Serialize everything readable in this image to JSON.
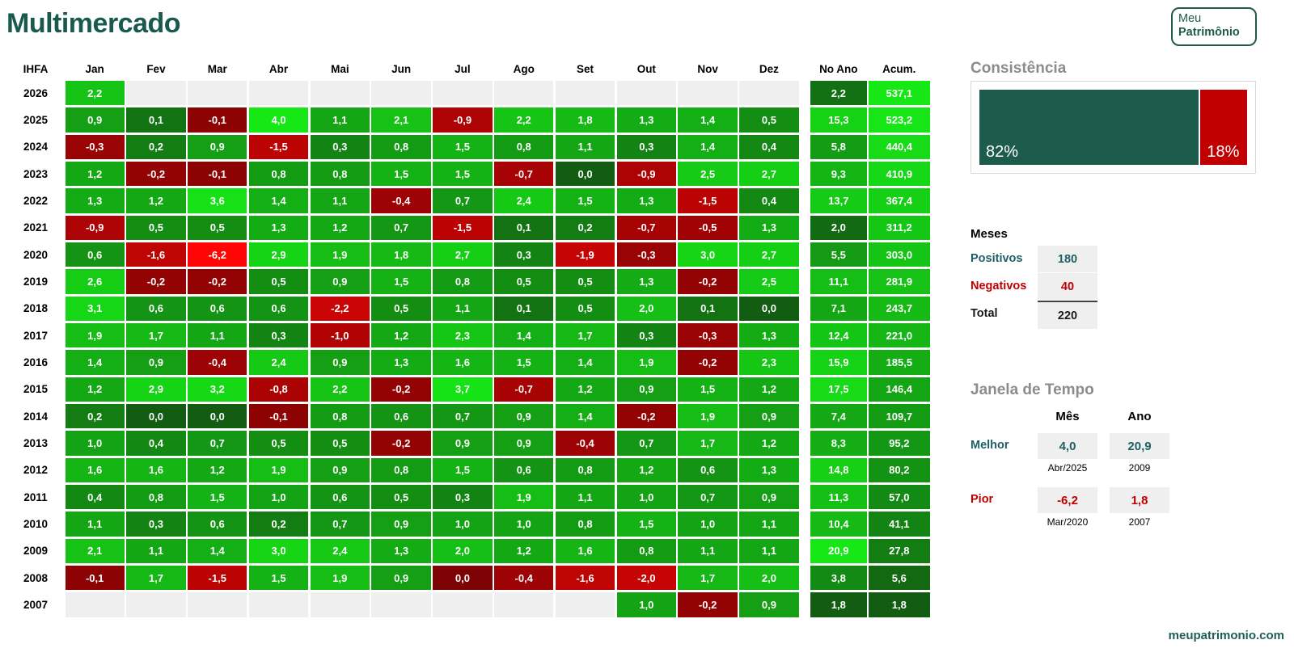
{
  "page": {
    "title": "Multimercado",
    "footer": "meupatrimonio.com"
  },
  "logo": {
    "line1": "Meu",
    "line2": "Patrimônio"
  },
  "chart_data": {
    "type": "heatmap",
    "title": "Multimercado",
    "corner_label": "IHFA",
    "month_columns": [
      "Jan",
      "Fev",
      "Mar",
      "Abr",
      "Mai",
      "Jun",
      "Jul",
      "Ago",
      "Set",
      "Out",
      "Nov",
      "Dez"
    ],
    "summary_columns": [
      "No Ano",
      "Acum."
    ],
    "rows": [
      {
        "year": "2026",
        "months": [
          "2,2",
          "",
          "",
          "",
          "",
          "",
          "",
          "",
          "",
          "",
          "",
          ""
        ],
        "no_ano": "2,2",
        "acum": "537,1"
      },
      {
        "year": "2025",
        "months": [
          "0,9",
          "0,1",
          "-0,1",
          "4,0",
          "1,1",
          "2,1",
          "-0,9",
          "2,2",
          "1,8",
          "1,3",
          "1,4",
          "0,5"
        ],
        "no_ano": "15,3",
        "acum": "523,2"
      },
      {
        "year": "2024",
        "months": [
          "-0,3",
          "0,2",
          "0,9",
          "-1,5",
          "0,3",
          "0,8",
          "1,5",
          "0,8",
          "1,1",
          "0,3",
          "1,4",
          "0,4"
        ],
        "no_ano": "5,8",
        "acum": "440,4"
      },
      {
        "year": "2023",
        "months": [
          "1,2",
          "-0,2",
          "-0,1",
          "0,8",
          "0,8",
          "1,5",
          "1,5",
          "-0,7",
          "0,0",
          "-0,9",
          "2,5",
          "2,7"
        ],
        "no_ano": "9,3",
        "acum": "410,9"
      },
      {
        "year": "2022",
        "months": [
          "1,3",
          "1,2",
          "3,6",
          "1,4",
          "1,1",
          "-0,4",
          "0,7",
          "2,4",
          "1,5",
          "1,3",
          "-1,5",
          "0,4"
        ],
        "no_ano": "13,7",
        "acum": "367,4"
      },
      {
        "year": "2021",
        "months": [
          "-0,9",
          "0,5",
          "0,5",
          "1,3",
          "1,2",
          "0,7",
          "-1,5",
          "0,1",
          "0,2",
          "-0,7",
          "-0,5",
          "1,3"
        ],
        "no_ano": "2,0",
        "acum": "311,2"
      },
      {
        "year": "2020",
        "months": [
          "0,6",
          "-1,6",
          "-6,2",
          "2,9",
          "1,9",
          "1,8",
          "2,7",
          "0,3",
          "-1,9",
          "-0,3",
          "3,0",
          "2,7"
        ],
        "no_ano": "5,5",
        "acum": "303,0"
      },
      {
        "year": "2019",
        "months": [
          "2,6",
          "-0,2",
          "-0,2",
          "0,5",
          "0,9",
          "1,5",
          "0,8",
          "0,5",
          "0,5",
          "1,3",
          "-0,2",
          "2,5"
        ],
        "no_ano": "11,1",
        "acum": "281,9"
      },
      {
        "year": "2018",
        "months": [
          "3,1",
          "0,6",
          "0,6",
          "0,6",
          "-2,2",
          "0,5",
          "1,1",
          "0,1",
          "0,5",
          "2,0",
          "0,1",
          "0,0"
        ],
        "no_ano": "7,1",
        "acum": "243,7"
      },
      {
        "year": "2017",
        "months": [
          "1,9",
          "1,7",
          "1,1",
          "0,3",
          "-1,0",
          "1,2",
          "2,3",
          "1,4",
          "1,7",
          "0,3",
          "-0,3",
          "1,3"
        ],
        "no_ano": "12,4",
        "acum": "221,0"
      },
      {
        "year": "2016",
        "months": [
          "1,4",
          "0,9",
          "-0,4",
          "2,4",
          "0,9",
          "1,3",
          "1,6",
          "1,5",
          "1,4",
          "1,9",
          "-0,2",
          "2,3"
        ],
        "no_ano": "15,9",
        "acum": "185,5"
      },
      {
        "year": "2015",
        "months": [
          "1,2",
          "2,9",
          "3,2",
          "-0,8",
          "2,2",
          "-0,2",
          "3,7",
          "-0,7",
          "1,2",
          "0,9",
          "1,5",
          "1,2"
        ],
        "no_ano": "17,5",
        "acum": "146,4"
      },
      {
        "year": "2014",
        "months": [
          "0,2",
          "0,0",
          "0,0",
          "-0,1",
          "0,8",
          "0,6",
          "0,7",
          "0,9",
          "1,4",
          "-0,2",
          "1,9",
          "0,9"
        ],
        "no_ano": "7,4",
        "acum": "109,7"
      },
      {
        "year": "2013",
        "months": [
          "1,0",
          "0,4",
          "0,7",
          "0,5",
          "0,5",
          "-0,2",
          "0,9",
          "0,9",
          "-0,4",
          "0,7",
          "1,7",
          "1,2"
        ],
        "no_ano": "8,3",
        "acum": "95,2"
      },
      {
        "year": "2012",
        "months": [
          "1,6",
          "1,6",
          "1,2",
          "1,9",
          "0,9",
          "0,8",
          "1,5",
          "0,6",
          "0,8",
          "1,2",
          "0,6",
          "1,3"
        ],
        "no_ano": "14,8",
        "acum": "80,2"
      },
      {
        "year": "2011",
        "months": [
          "0,4",
          "0,8",
          "1,5",
          "1,0",
          "0,6",
          "0,5",
          "0,3",
          "1,9",
          "1,1",
          "1,0",
          "0,7",
          "0,9"
        ],
        "no_ano": "11,3",
        "acum": "57,0"
      },
      {
        "year": "2010",
        "months": [
          "1,1",
          "0,3",
          "0,6",
          "0,2",
          "0,7",
          "0,9",
          "1,0",
          "1,0",
          "0,8",
          "1,5",
          "1,0",
          "1,1"
        ],
        "no_ano": "10,4",
        "acum": "41,1"
      },
      {
        "year": "2009",
        "months": [
          "2,1",
          "1,1",
          "1,4",
          "3,0",
          "2,4",
          "1,3",
          "2,0",
          "1,2",
          "1,6",
          "0,8",
          "1,1",
          "1,1"
        ],
        "no_ano": "20,9",
        "acum": "27,8"
      },
      {
        "year": "2008",
        "months": [
          "-0,1",
          "1,7",
          "-1,5",
          "1,5",
          "1,9",
          "0,9",
          "0,0",
          "-0,4",
          "-1,6",
          "-2,0",
          "1,7",
          "2,0"
        ],
        "no_ano": "3,8",
        "acum": "5,6"
      },
      {
        "year": "2007",
        "months": [
          "",
          "",
          "",
          "",
          "",
          "",
          "",
          "",
          "",
          "1,0",
          "-0,2",
          "0,9"
        ],
        "no_ano": "1,8",
        "acum": "1,8"
      }
    ],
    "month_scale": {
      "min": -6.2,
      "max": 4.0
    },
    "no_ano_scale": {
      "min": 1.8,
      "max": 20.9
    },
    "acum_scale": {
      "min": 1.8,
      "max": 537.1
    },
    "negative_zero_cells": [
      [
        "2008",
        6
      ]
    ],
    "colors": {
      "empty": "#EFEFEF",
      "pos_dark": "#125D12",
      "pos_bright": "#16E816",
      "neg_dark": "#7C0203",
      "neg_bright": "#FF0505"
    }
  },
  "consistencia": {
    "title": "Consistência",
    "positive_value": 82,
    "negative_value": 18,
    "positive_pct": "82%",
    "negative_pct": "18%",
    "positive_color": "#1D5B4C",
    "negative_color": "#C00000"
  },
  "meses": {
    "title": "Meses",
    "positive_color": "#1D5F66",
    "negative_color": "#C00000",
    "total_color": "#1A1A1A",
    "rows": [
      {
        "label": "Positivos",
        "value": "180",
        "role": "positive"
      },
      {
        "label": "Negativos",
        "value": "40",
        "role": "negative"
      },
      {
        "label": "Total",
        "value": "220",
        "role": "total"
      }
    ]
  },
  "janela": {
    "title": "Janela de Tempo",
    "col_mes": "Mês",
    "col_ano": "Ano",
    "positive_color": "#1D5F66",
    "negative_color": "#C00000",
    "melhor": {
      "label": "Melhor",
      "mes_value": "4,0",
      "mes_sub": "Abr/2025",
      "ano_value": "20,9",
      "ano_sub": "2009"
    },
    "pior": {
      "label": "Pior",
      "mes_value": "-6,2",
      "mes_sub": "Mar/2020",
      "ano_value": "1,8",
      "ano_sub": "2007"
    }
  }
}
